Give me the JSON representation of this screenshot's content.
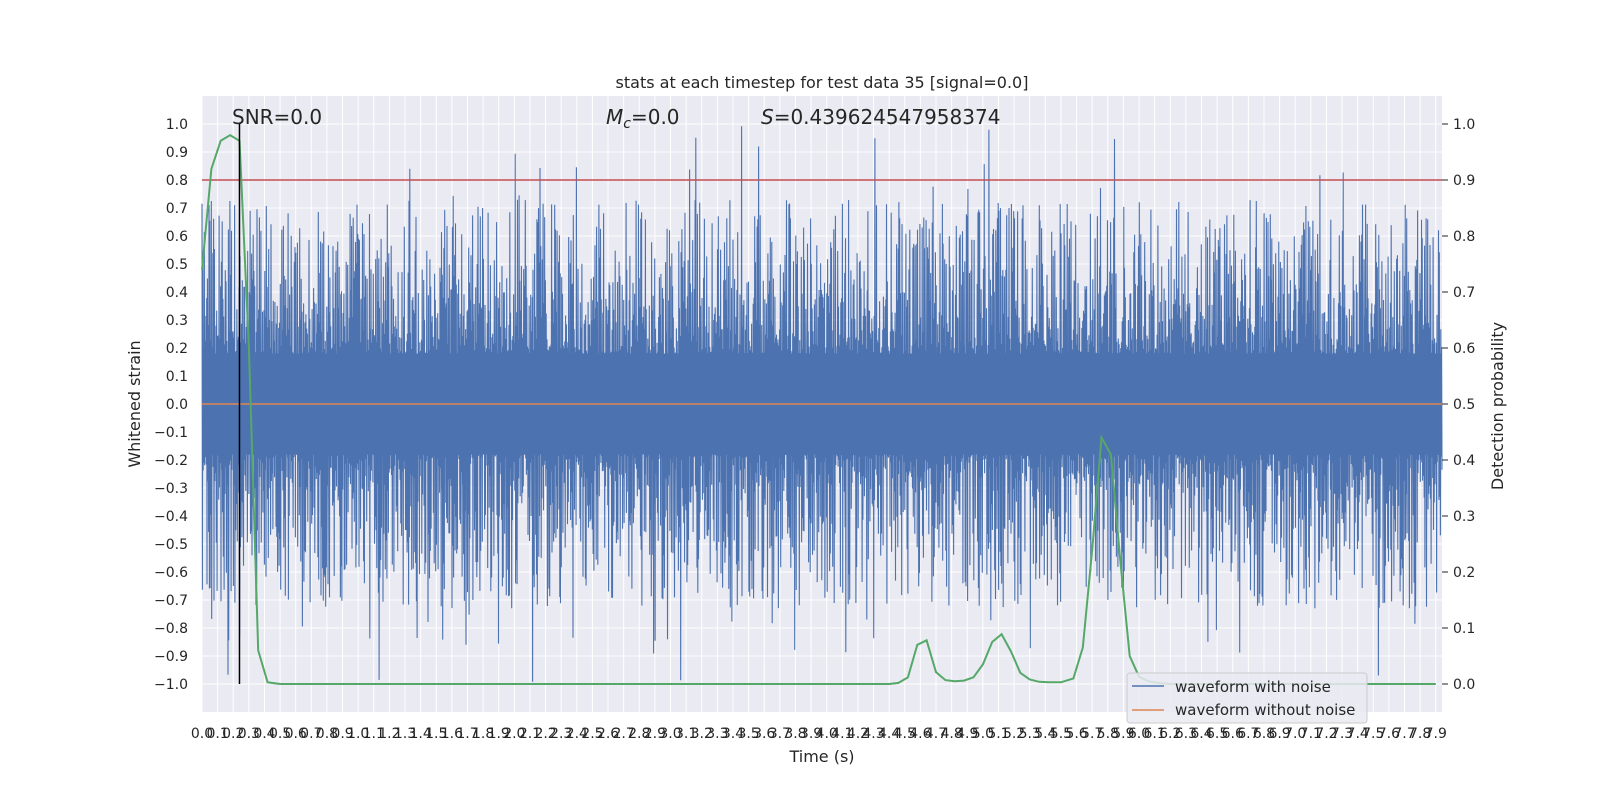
{
  "chart_data": {
    "type": "line",
    "title": "stats at each timestep for test data 35 [signal=0.0]",
    "xlabel": "Time (s)",
    "ylabel_left": "Whitened strain",
    "ylabel_right": "Detection probability",
    "annotations": {
      "snr": "SNR=0.0",
      "mc_symbol": "M",
      "mc_sub": "c",
      "mc_value": "=0.0",
      "s_symbol": "S",
      "s_value": "=0.439624547958374"
    },
    "xlim": [
      0.0,
      7.94
    ],
    "ylim_left": [
      -1.1,
      1.1
    ],
    "ylim_right": [
      -0.05,
      1.05
    ],
    "x_ticks": [
      "0.0",
      "0.1",
      "0.2",
      "0.3",
      "0.4",
      "0.5",
      "0.6",
      "0.7",
      "0.8",
      "0.9",
      "1.0",
      "1.1",
      "1.2",
      "1.3",
      "1.4",
      "1.5",
      "1.6",
      "1.7",
      "1.8",
      "1.9",
      "2.0",
      "2.1",
      "2.2",
      "2.3",
      "2.4",
      "2.5",
      "2.6",
      "2.7",
      "2.8",
      "2.9",
      "3.0",
      "3.1",
      "3.2",
      "3.3",
      "3.4",
      "3.5",
      "3.6",
      "3.7",
      "3.8",
      "3.9",
      "4.0",
      "4.1",
      "4.2",
      "4.3",
      "4.4",
      "4.5",
      "4.6",
      "4.7",
      "4.8",
      "4.9",
      "5.0",
      "5.1",
      "5.2",
      "5.3",
      "5.4",
      "5.5",
      "5.6",
      "5.7",
      "5.8",
      "5.9",
      "6.0",
      "6.1",
      "6.2",
      "6.3",
      "6.4",
      "6.5",
      "6.6",
      "6.7",
      "6.8",
      "6.9",
      "7.0",
      "7.1",
      "7.2",
      "7.3",
      "7.4",
      "7.5",
      "7.6",
      "7.7",
      "7.8",
      "7.9"
    ],
    "y_ticks_left": [
      "1.0",
      "0.9",
      "0.8",
      "0.7",
      "0.6",
      "0.5",
      "0.4",
      "0.3",
      "0.2",
      "0.1",
      "0.0",
      "-0.1",
      "-0.2",
      "-0.3",
      "-0.4",
      "-0.5",
      "-0.6",
      "-0.7",
      "-0.8",
      "-0.9",
      "-1.0"
    ],
    "y_ticks_right": [
      "1.0",
      "0.9",
      "0.8",
      "0.7",
      "0.6",
      "0.5",
      "0.4",
      "0.3",
      "0.2",
      "0.1",
      "0.0"
    ],
    "threshold_right": 0.9,
    "marker_x": 0.24,
    "legend": [
      {
        "label": "waveform with noise",
        "color": "#4c72b0"
      },
      {
        "label": "waveform without noise",
        "color": "#dd8452"
      }
    ],
    "series": [
      {
        "name": "waveform with noise",
        "axis": "left",
        "color": "#4c72b0",
        "kind": "noise",
        "range": [
          -1.0,
          1.0
        ]
      },
      {
        "name": "waveform without noise",
        "axis": "left",
        "color": "#dd8452",
        "kind": "constant",
        "value": 0.0
      },
      {
        "name": "detection probability",
        "axis": "right",
        "color": "#55a868",
        "x": [
          0.0,
          0.06,
          0.12,
          0.18,
          0.24,
          0.3,
          0.36,
          0.42,
          0.5,
          0.6,
          1.0,
          2.0,
          3.0,
          4.0,
          4.4,
          4.46,
          4.52,
          4.58,
          4.64,
          4.7,
          4.76,
          4.82,
          4.88,
          4.94,
          5.0,
          5.06,
          5.12,
          5.18,
          5.24,
          5.3,
          5.36,
          5.42,
          5.5,
          5.58,
          5.64,
          5.7,
          5.76,
          5.82,
          5.88,
          5.94,
          6.0,
          6.06,
          6.12,
          6.2,
          7.0,
          7.9
        ],
        "y": [
          0.74,
          0.92,
          0.97,
          0.98,
          0.97,
          0.6,
          0.06,
          0.003,
          0.0,
          0.0,
          0.0,
          0.0,
          0.0,
          0.0,
          0.0,
          0.002,
          0.012,
          0.07,
          0.078,
          0.021,
          0.007,
          0.005,
          0.006,
          0.012,
          0.035,
          0.075,
          0.089,
          0.058,
          0.02,
          0.008,
          0.004,
          0.003,
          0.003,
          0.01,
          0.065,
          0.24,
          0.44,
          0.41,
          0.22,
          0.05,
          0.013,
          0.005,
          0.002,
          0.0,
          0.0,
          0.0
        ]
      }
    ]
  }
}
